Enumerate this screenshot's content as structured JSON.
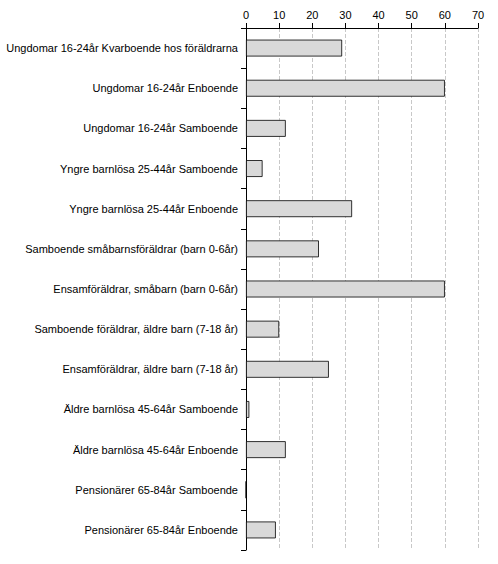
{
  "chart_data": {
    "type": "bar",
    "orientation": "horizontal",
    "categories": [
      "Ungdomar 16-24år Kvarboende hos föräldrarna",
      "Ungdomar 16-24år Enboende",
      "Ungdomar 16-24år Samboende",
      "Yngre barnlösa 25-44år Samboende",
      "Yngre barnlösa 25-44år Enboende",
      "Samboende småbarnsföräldrar (barn 0-6år)",
      "Ensamföräldrar, småbarn (barn 0-6år)",
      "Samboende föräldrar, äldre barn (7-18 år)",
      "Ensamföräldrar, äldre barn (7-18 år)",
      "Äldre barnlösa 45-64år Samboende",
      "Äldre barnlösa 45-64år Enboende",
      "Pensionärer 65-84år Samboende",
      "Pensionärer 65-84år Enboende"
    ],
    "values": [
      29,
      60,
      12,
      5,
      32,
      22,
      60,
      10,
      25,
      1,
      12,
      0,
      9
    ],
    "color": "#d9d9d9",
    "xlim": [
      0,
      70
    ],
    "xticks": [
      0,
      10,
      20,
      30,
      40,
      50,
      60,
      70
    ],
    "grid": true
  }
}
